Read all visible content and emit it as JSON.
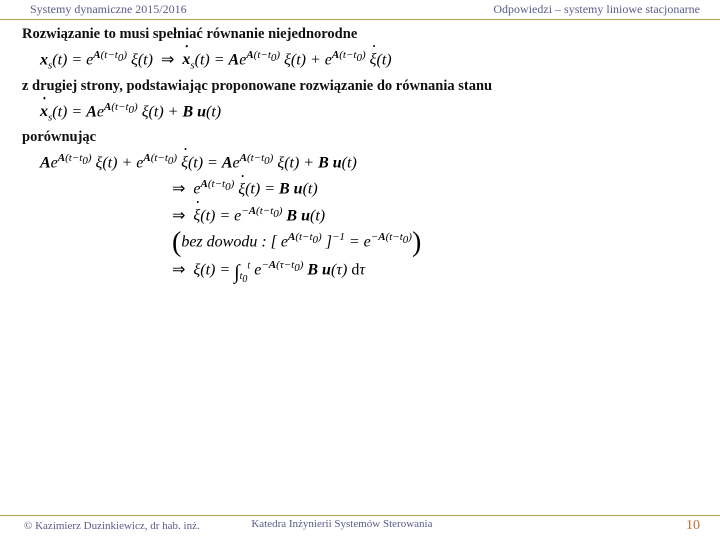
{
  "header": {
    "left": "Systemy dynamiczne 2015/2016",
    "right": "Odpowiedzi – systemy liniowe stacjonarne"
  },
  "text": {
    "p1": "Rozwiązanie to musi spełniać równanie niejednorodne",
    "p2": "z drugiej strony, podstawiając proponowane rozwiązanie do równania stanu",
    "p3": "porównując",
    "note": "bez dowodu"
  },
  "footer": {
    "left": "© Kazimierz Duzinkiewicz, dr hab. inż.",
    "mid": "Katedra Inżynierii Systemów Sterowania",
    "page": "10"
  },
  "colors": {
    "hr": "#b0a060",
    "header_text": "#5b5b8b",
    "page_num": "#c07030",
    "bg": "#ffffff"
  },
  "fonts": {
    "body": "Comic Sans MS",
    "math": "Times New Roman",
    "header_size_pt": 9,
    "body_size_pt": 11,
    "eq_size_pt": 12
  }
}
